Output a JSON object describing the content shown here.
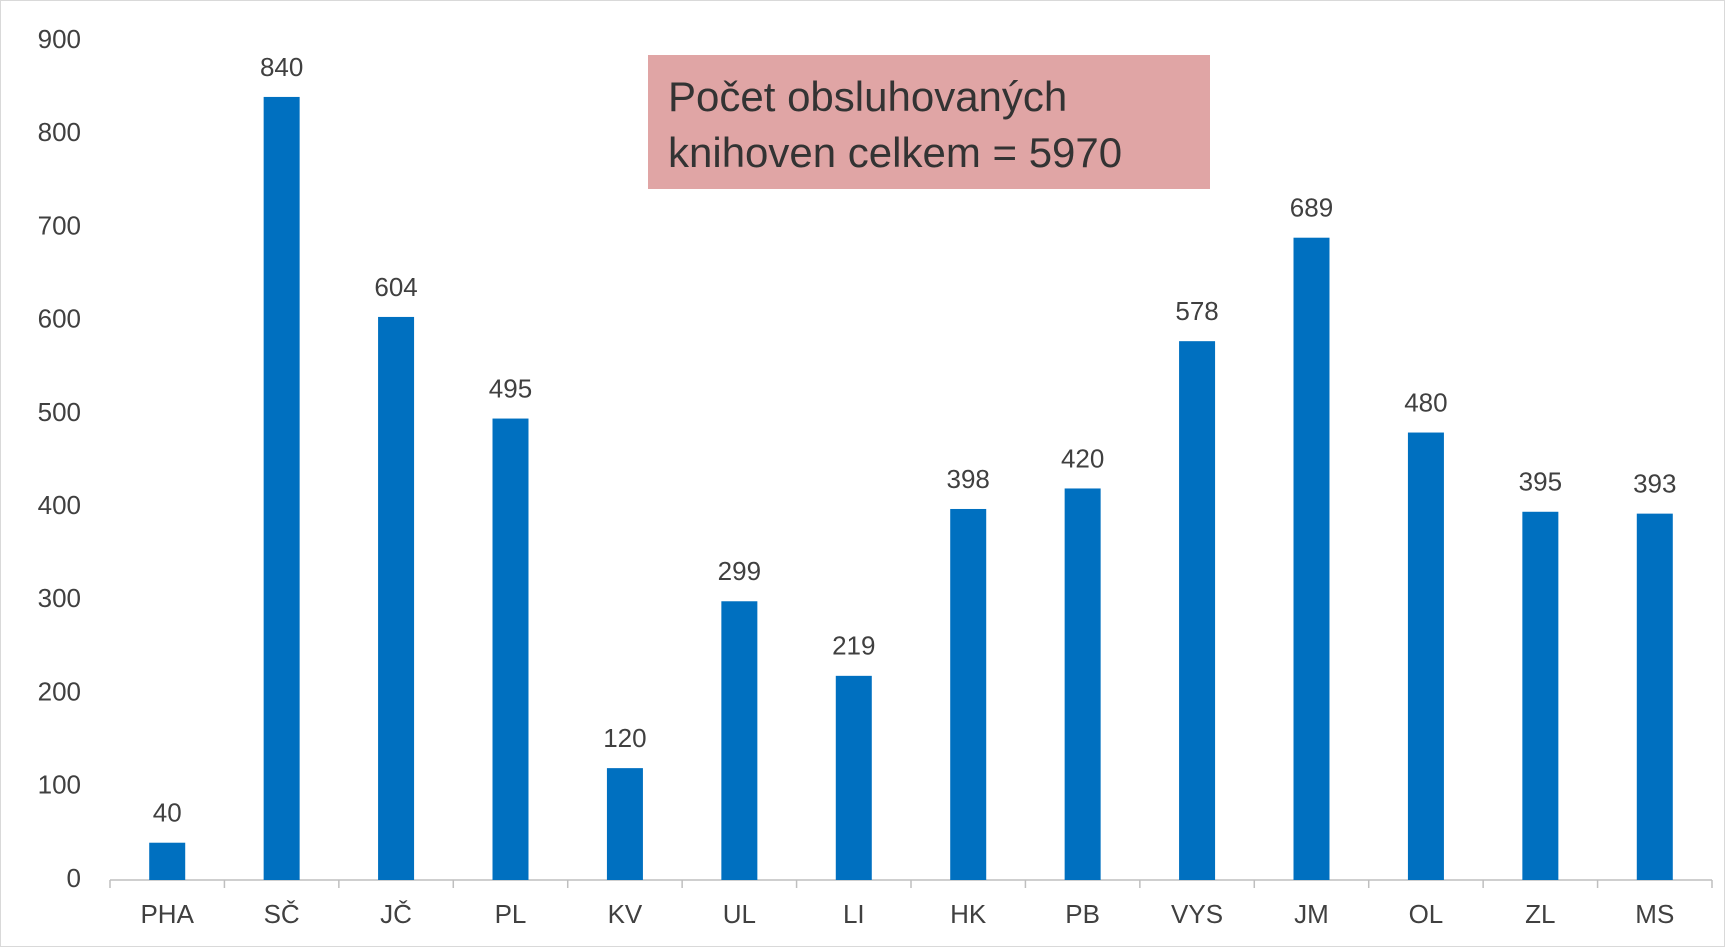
{
  "chart_data": {
    "type": "bar",
    "annotation": [
      "Počet obsluhovaných",
      "knihoven celkem = 5970"
    ],
    "categories": [
      "PHA",
      "SČ",
      "JČ",
      "PL",
      "KV",
      "UL",
      "LI",
      "HK",
      "PB",
      "VYS",
      "JM",
      "OL",
      "ZL",
      "MS"
    ],
    "values": [
      40,
      840,
      604,
      495,
      120,
      299,
      219,
      398,
      420,
      578,
      689,
      480,
      395,
      393
    ],
    "color": "#0070c0",
    "ylim": [
      0,
      900
    ],
    "yticks": [
      0,
      100,
      200,
      300,
      400,
      500,
      600,
      700,
      800,
      900
    ],
    "grid": false,
    "data_labels": true
  }
}
